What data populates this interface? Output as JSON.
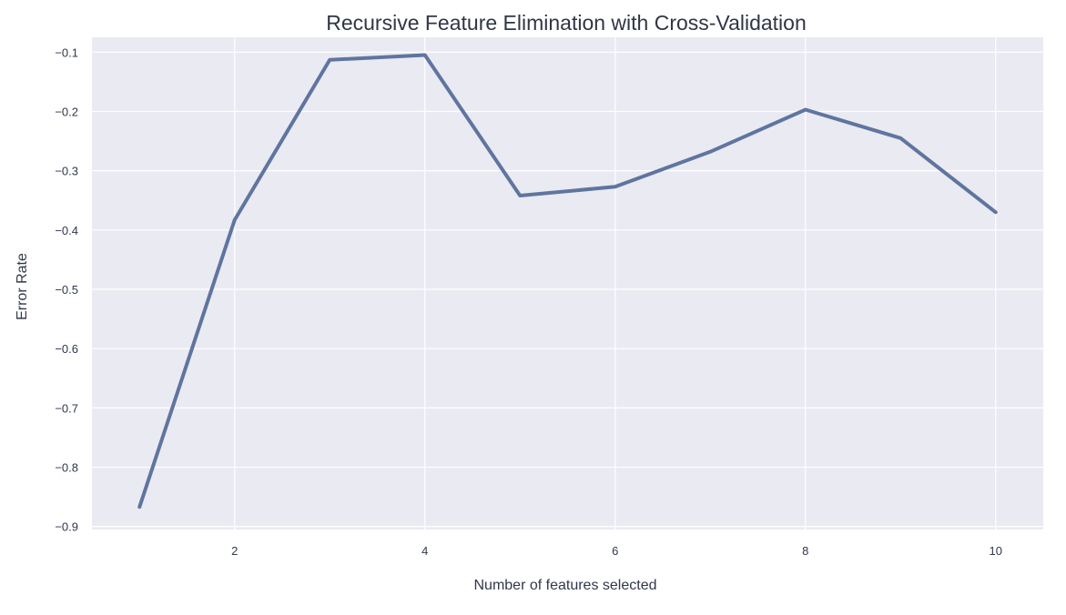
{
  "chart_data": {
    "type": "line",
    "title": "Recursive Feature Elimination with Cross-Validation",
    "xlabel": "Number of features selected",
    "ylabel": "Error Rate",
    "x": [
      1,
      2,
      3,
      4,
      5,
      6,
      7,
      8,
      9,
      10
    ],
    "series": [
      {
        "values": [
          -0.867,
          -0.383,
          -0.113,
          -0.105,
          -0.342,
          -0.327,
          -0.268,
          -0.197,
          -0.245,
          -0.37
        ],
        "color": "#5f75a0"
      }
    ],
    "xlim": [
      0.5,
      10.5
    ],
    "ylim": [
      -0.905,
      -0.075
    ],
    "xticks": [
      2,
      4,
      6,
      8,
      10
    ],
    "yticks": [
      -0.9,
      -0.8,
      -0.7,
      -0.6,
      -0.5,
      -0.4,
      -0.3,
      -0.2,
      -0.1
    ],
    "xtick_labels": [
      "2",
      "4",
      "6",
      "8",
      "10"
    ],
    "ytick_labels": [
      "−0.9",
      "−0.8",
      "−0.7",
      "−0.6",
      "−0.5",
      "−0.4",
      "−0.3",
      "−0.2",
      "−0.1"
    ],
    "grid": true,
    "background_color": "#eaeaf2",
    "grid_color": "#ffffff",
    "legend": "none"
  }
}
